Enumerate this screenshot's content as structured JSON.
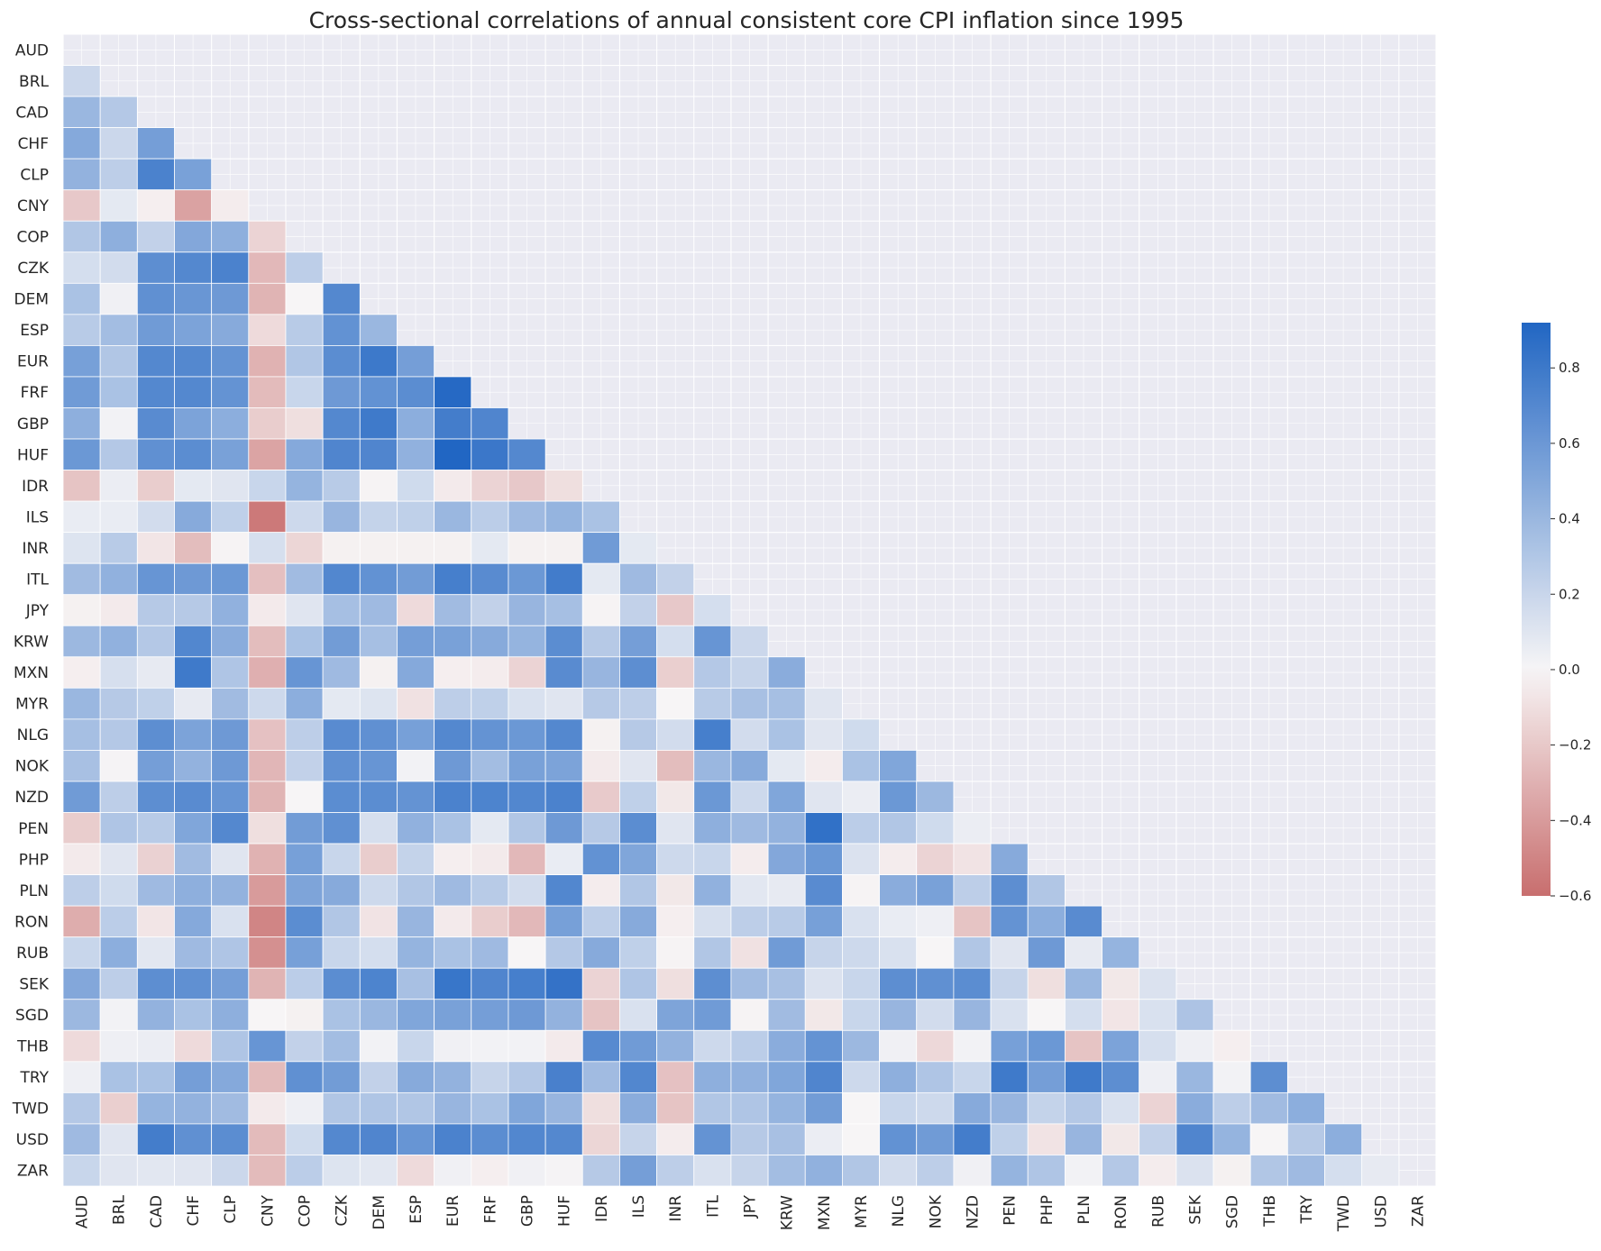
{
  "chart_data": {
    "type": "heatmap",
    "title": "Cross-sectional correlations of annual consistent core CPI inflation since 1995",
    "labels": [
      "AUD",
      "BRL",
      "CAD",
      "CHF",
      "CLP",
      "CNY",
      "COP",
      "CZK",
      "DEM",
      "ESP",
      "EUR",
      "FRF",
      "GBP",
      "HUF",
      "IDR",
      "ILS",
      "INR",
      "ITL",
      "JPY",
      "KRW",
      "MXN",
      "MYR",
      "NLG",
      "NOK",
      "NZD",
      "PEN",
      "PHP",
      "PLN",
      "RON",
      "RUB",
      "SEK",
      "SGD",
      "THB",
      "TRY",
      "TWD",
      "USD",
      "ZAR"
    ],
    "mask": "upper-triangle-and-diagonal",
    "values": [
      [],
      [
        0.19
      ],
      [
        0.4,
        0.29
      ],
      [
        0.49,
        0.19,
        0.56
      ],
      [
        0.43,
        0.25,
        0.74,
        0.54
      ],
      [
        -0.2,
        0.08,
        -0.03,
        -0.37,
        -0.04
      ],
      [
        0.3,
        0.45,
        0.23,
        0.5,
        0.45,
        -0.15
      ],
      [
        0.15,
        0.16,
        0.66,
        0.7,
        0.74,
        -0.27,
        0.25
      ],
      [
        0.33,
        0.03,
        0.65,
        0.61,
        0.59,
        -0.29,
        0.0,
        0.7
      ],
      [
        0.27,
        0.36,
        0.58,
        0.53,
        0.48,
        -0.12,
        0.27,
        0.64,
        0.4
      ],
      [
        0.55,
        0.3,
        0.7,
        0.7,
        0.63,
        -0.3,
        0.3,
        0.67,
        0.8,
        0.56
      ],
      [
        0.58,
        0.33,
        0.7,
        0.7,
        0.63,
        -0.26,
        0.2,
        0.59,
        0.64,
        0.67,
        0.9
      ],
      [
        0.45,
        0.02,
        0.68,
        0.53,
        0.46,
        -0.18,
        -0.1,
        0.7,
        0.79,
        0.46,
        0.77,
        0.72
      ],
      [
        0.6,
        0.29,
        0.65,
        0.67,
        0.54,
        -0.36,
        0.49,
        0.72,
        0.72,
        0.44,
        0.92,
        0.81,
        0.7
      ],
      [
        -0.22,
        0.05,
        -0.18,
        0.08,
        0.1,
        0.2,
        0.42,
        0.27,
        -0.01,
        0.17,
        -0.05,
        -0.15,
        -0.2,
        -0.1
      ],
      [
        0.06,
        0.06,
        0.16,
        0.48,
        0.24,
        -0.55,
        0.18,
        0.41,
        0.22,
        0.24,
        0.4,
        0.26,
        0.38,
        0.42,
        0.33
      ],
      [
        0.11,
        0.27,
        -0.07,
        -0.25,
        -0.01,
        0.14,
        -0.14,
        -0.02,
        -0.02,
        -0.02,
        -0.02,
        0.08,
        -0.02,
        -0.02,
        0.58,
        0.08
      ],
      [
        0.37,
        0.44,
        0.62,
        0.59,
        0.6,
        -0.24,
        0.37,
        0.71,
        0.64,
        0.57,
        0.76,
        0.68,
        0.6,
        0.78,
        0.08,
        0.38,
        0.23
      ],
      [
        -0.02,
        -0.05,
        0.28,
        0.28,
        0.44,
        -0.05,
        0.1,
        0.35,
        0.38,
        -0.12,
        0.37,
        0.23,
        0.41,
        0.35,
        -0.01,
        0.23,
        -0.2,
        0.15
      ],
      [
        0.39,
        0.44,
        0.29,
        0.71,
        0.47,
        -0.25,
        0.33,
        0.57,
        0.35,
        0.56,
        0.54,
        0.48,
        0.42,
        0.67,
        0.28,
        0.56,
        0.15,
        0.62,
        0.19
      ],
      [
        -0.03,
        0.14,
        0.07,
        0.79,
        0.31,
        -0.31,
        0.62,
        0.38,
        -0.02,
        0.49,
        -0.03,
        -0.04,
        -0.15,
        0.68,
        0.41,
        0.66,
        -0.17,
        0.29,
        0.21,
        0.47
      ],
      [
        0.4,
        0.28,
        0.24,
        0.07,
        0.37,
        0.18,
        0.46,
        0.08,
        0.11,
        -0.09,
        0.25,
        0.24,
        0.13,
        0.1,
        0.28,
        0.25,
        0.0,
        0.27,
        0.34,
        0.35,
        0.1
      ],
      [
        0.35,
        0.29,
        0.66,
        0.53,
        0.59,
        -0.23,
        0.25,
        0.68,
        0.65,
        0.55,
        0.7,
        0.63,
        0.6,
        0.7,
        -0.02,
        0.28,
        0.16,
        0.76,
        0.16,
        0.33,
        0.1,
        0.17
      ],
      [
        0.34,
        0.01,
        0.56,
        0.43,
        0.59,
        -0.28,
        0.23,
        0.65,
        0.62,
        0.02,
        0.59,
        0.36,
        0.54,
        0.53,
        -0.05,
        0.1,
        -0.25,
        0.4,
        0.48,
        0.08,
        -0.04,
        0.33,
        0.51
      ],
      [
        0.58,
        0.25,
        0.66,
        0.68,
        0.62,
        -0.29,
        0.0,
        0.67,
        0.67,
        0.63,
        0.74,
        0.73,
        0.71,
        0.74,
        -0.19,
        0.24,
        -0.06,
        0.6,
        0.18,
        0.51,
        0.1,
        0.05,
        0.6,
        0.39
      ],
      [
        -0.18,
        0.31,
        0.27,
        0.51,
        0.7,
        -0.1,
        0.57,
        0.65,
        0.14,
        0.44,
        0.33,
        0.08,
        0.3,
        0.59,
        0.28,
        0.67,
        0.1,
        0.45,
        0.38,
        0.43,
        0.85,
        0.26,
        0.3,
        0.17,
        0.05
      ],
      [
        -0.05,
        0.1,
        -0.16,
        0.37,
        0.1,
        -0.3,
        0.55,
        0.2,
        -0.18,
        0.22,
        -0.03,
        -0.05,
        -0.27,
        0.06,
        0.64,
        0.51,
        0.18,
        0.2,
        -0.04,
        0.5,
        0.6,
        0.12,
        -0.04,
        -0.15,
        -0.08,
        0.48
      ],
      [
        0.25,
        0.17,
        0.38,
        0.45,
        0.43,
        -0.4,
        0.52,
        0.48,
        0.18,
        0.3,
        0.38,
        0.27,
        0.16,
        0.71,
        -0.04,
        0.3,
        -0.06,
        0.44,
        0.09,
        0.07,
        0.68,
        -0.01,
        0.47,
        0.54,
        0.25,
        0.66,
        0.3
      ],
      [
        -0.32,
        0.26,
        -0.07,
        0.49,
        0.13,
        -0.5,
        0.67,
        0.3,
        -0.08,
        0.41,
        -0.05,
        -0.18,
        -0.27,
        0.55,
        0.25,
        0.48,
        -0.03,
        0.14,
        0.25,
        0.27,
        0.55,
        0.13,
        0.06,
        0.04,
        -0.22,
        0.63,
        0.46,
        0.68
      ],
      [
        0.2,
        0.46,
        0.09,
        0.38,
        0.31,
        -0.45,
        0.55,
        0.2,
        0.15,
        0.42,
        0.33,
        0.38,
        0.0,
        0.29,
        0.48,
        0.24,
        -0.01,
        0.3,
        -0.09,
        0.58,
        0.21,
        0.18,
        0.13,
        0.0,
        0.3,
        0.1,
        0.59,
        0.07,
        0.42
      ],
      [
        0.5,
        0.25,
        0.66,
        0.65,
        0.56,
        -0.29,
        0.26,
        0.67,
        0.73,
        0.34,
        0.82,
        0.72,
        0.76,
        0.84,
        -0.15,
        0.31,
        -0.1,
        0.66,
        0.37,
        0.34,
        0.12,
        0.2,
        0.66,
        0.65,
        0.67,
        0.21,
        -0.1,
        0.4,
        -0.06,
        0.12
      ],
      [
        0.39,
        0.02,
        0.43,
        0.33,
        0.45,
        0.0,
        -0.02,
        0.33,
        0.4,
        0.51,
        0.54,
        0.56,
        0.59,
        0.43,
        -0.22,
        0.13,
        0.52,
        0.58,
        -0.01,
        0.37,
        -0.06,
        0.2,
        0.41,
        0.16,
        0.41,
        0.13,
        0.0,
        0.15,
        -0.07,
        0.13,
        0.32
      ],
      [
        -0.12,
        0.04,
        0.05,
        -0.12,
        0.31,
        0.62,
        0.23,
        0.36,
        0.02,
        0.2,
        0.03,
        0.02,
        0.02,
        -0.05,
        0.69,
        0.58,
        0.43,
        0.18,
        0.26,
        0.47,
        0.63,
        0.39,
        0.03,
        -0.13,
        0.02,
        0.55,
        0.6,
        -0.22,
        0.53,
        0.14,
        0.04,
        -0.03
      ],
      [
        0.04,
        0.33,
        0.33,
        0.56,
        0.49,
        -0.26,
        0.65,
        0.57,
        0.23,
        0.48,
        0.43,
        0.21,
        0.29,
        0.75,
        0.37,
        0.71,
        -0.23,
        0.45,
        0.44,
        0.51,
        0.72,
        0.18,
        0.45,
        0.31,
        0.2,
        0.79,
        0.56,
        0.79,
        0.66,
        0.04,
        0.4,
        0.02,
        0.66
      ],
      [
        0.29,
        -0.17,
        0.42,
        0.43,
        0.37,
        -0.05,
        0.04,
        0.3,
        0.31,
        0.3,
        0.41,
        0.33,
        0.51,
        0.41,
        -0.1,
        0.47,
        -0.22,
        0.3,
        0.31,
        0.42,
        0.57,
        0.0,
        0.2,
        0.18,
        0.48,
        0.41,
        0.22,
        0.29,
        0.13,
        -0.15,
        0.47,
        0.25,
        0.37,
        0.46
      ],
      [
        0.38,
        0.1,
        0.77,
        0.65,
        0.67,
        -0.26,
        0.17,
        0.7,
        0.72,
        0.62,
        0.74,
        0.67,
        0.71,
        0.7,
        -0.14,
        0.21,
        -0.04,
        0.63,
        0.28,
        0.34,
        0.05,
        0.0,
        0.64,
        0.58,
        0.77,
        0.24,
        -0.08,
        0.41,
        -0.06,
        0.23,
        0.72,
        0.42,
        0.0,
        0.28,
        0.46
      ],
      [
        0.2,
        0.1,
        0.09,
        0.1,
        0.19,
        -0.26,
        0.26,
        0.11,
        0.09,
        -0.12,
        0.03,
        -0.03,
        0.03,
        0.01,
        0.28,
        0.56,
        0.25,
        0.13,
        0.21,
        0.36,
        0.44,
        0.3,
        0.16,
        0.25,
        0.03,
        0.42,
        0.31,
        0.02,
        0.29,
        -0.04,
        0.12,
        -0.02,
        0.3,
        0.38,
        0.15,
        0.07
      ]
    ],
    "colorbar": {
      "min": -0.6,
      "max": 0.92,
      "ticks": [
        -0.6,
        -0.4,
        -0.2,
        0.0,
        0.2,
        0.4,
        0.6,
        0.8
      ],
      "tick_labels": [
        "−0.6",
        "−0.4",
        "−0.2",
        "0.0",
        "0.2",
        "0.4",
        "0.6",
        "0.8"
      ],
      "colors": {
        "negative": "#c86e6e",
        "neutral": "#f7f5f6",
        "positive": "#2166c3"
      }
    },
    "grid": true,
    "background_color": "#eaeaf2",
    "grid_color": "#ffffff"
  }
}
